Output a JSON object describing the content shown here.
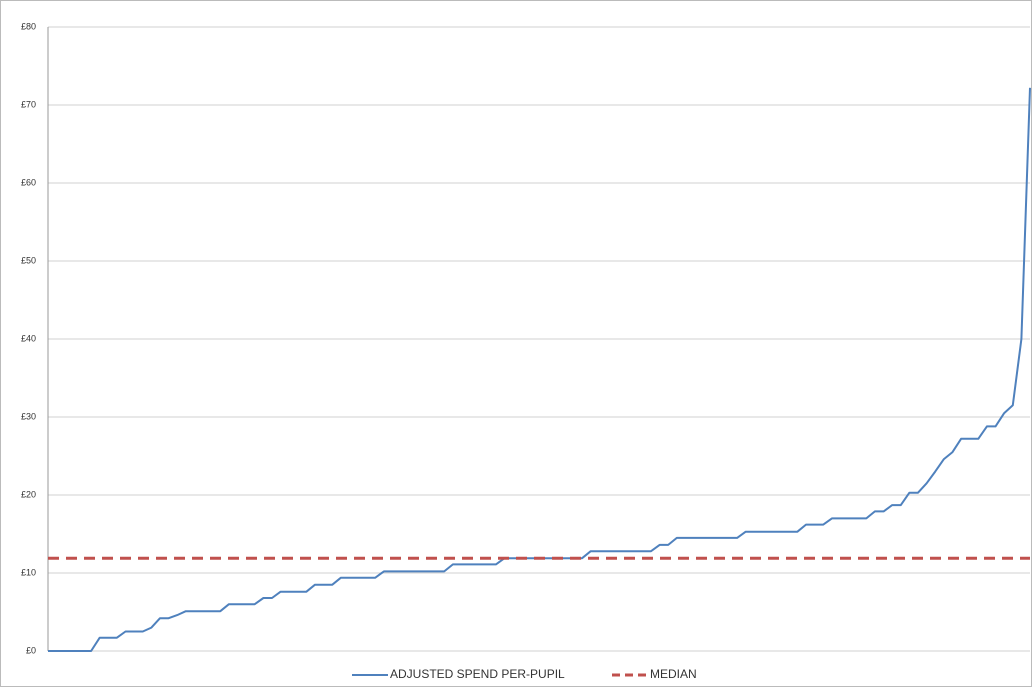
{
  "chart_data": {
    "type": "line",
    "ylim": [
      0,
      80
    ],
    "yticks": [
      {
        "value": 0,
        "label": "£0"
      },
      {
        "value": 10,
        "label": "£10"
      },
      {
        "value": 20,
        "label": "£20"
      },
      {
        "value": 30,
        "label": "£30"
      },
      {
        "value": 40,
        "label": "£40"
      },
      {
        "value": 50,
        "label": "£50"
      },
      {
        "value": 60,
        "label": "£60"
      },
      {
        "value": 70,
        "label": "£70"
      },
      {
        "value": 80,
        "label": "£80"
      }
    ],
    "grid": true,
    "legend": "bottom",
    "series": [
      {
        "name": "ADJUSTED SPEND PER-PUPIL",
        "color": "#4f81bd",
        "dashed": false,
        "values": [
          0,
          0,
          0,
          0,
          0,
          0,
          1.7,
          1.7,
          1.7,
          2.5,
          2.5,
          2.5,
          3.0,
          4.2,
          4.2,
          4.6,
          5.1,
          5.1,
          5.1,
          5.1,
          5.1,
          6.0,
          6.0,
          6.0,
          6.0,
          6.8,
          6.8,
          7.6,
          7.6,
          7.6,
          7.6,
          8.5,
          8.5,
          8.5,
          9.4,
          9.4,
          9.4,
          9.4,
          9.4,
          10.2,
          10.2,
          10.2,
          10.2,
          10.2,
          10.2,
          10.2,
          10.2,
          11.1,
          11.1,
          11.1,
          11.1,
          11.1,
          11.1,
          11.9,
          11.9,
          11.9,
          11.9,
          11.9,
          11.9,
          11.9,
          11.9,
          11.9,
          11.9,
          12.8,
          12.8,
          12.8,
          12.8,
          12.8,
          12.8,
          12.8,
          12.8,
          13.6,
          13.6,
          14.5,
          14.5,
          14.5,
          14.5,
          14.5,
          14.5,
          14.5,
          14.5,
          15.3,
          15.3,
          15.3,
          15.3,
          15.3,
          15.3,
          15.3,
          16.2,
          16.2,
          16.2,
          17.0,
          17.0,
          17.0,
          17.0,
          17.0,
          17.9,
          17.9,
          18.7,
          18.7,
          20.3,
          20.3,
          21.5,
          23.0,
          24.6,
          25.5,
          27.2,
          27.2,
          27.2,
          28.8,
          28.8,
          30.5,
          31.5,
          40,
          72.2
        ]
      },
      {
        "name": "MEDIAN",
        "color": "#c0504d",
        "dashed": true,
        "values": [
          11.9,
          11.9,
          11.9,
          11.9,
          11.9,
          11.9,
          11.9,
          11.9,
          11.9,
          11.9,
          11.9,
          11.9,
          11.9,
          11.9,
          11.9,
          11.9,
          11.9,
          11.9,
          11.9,
          11.9,
          11.9,
          11.9,
          11.9,
          11.9,
          11.9,
          11.9,
          11.9,
          11.9,
          11.9,
          11.9,
          11.9,
          11.9,
          11.9,
          11.9,
          11.9,
          11.9,
          11.9,
          11.9,
          11.9,
          11.9,
          11.9,
          11.9,
          11.9,
          11.9,
          11.9,
          11.9,
          11.9,
          11.9,
          11.9,
          11.9,
          11.9,
          11.9,
          11.9,
          11.9,
          11.9,
          11.9,
          11.9,
          11.9,
          11.9,
          11.9,
          11.9,
          11.9,
          11.9,
          11.9,
          11.9,
          11.9,
          11.9,
          11.9,
          11.9,
          11.9,
          11.9,
          11.9,
          11.9,
          11.9,
          11.9,
          11.9,
          11.9,
          11.9,
          11.9,
          11.9,
          11.9,
          11.9,
          11.9,
          11.9,
          11.9,
          11.9,
          11.9,
          11.9,
          11.9,
          11.9,
          11.9,
          11.9,
          11.9,
          11.9,
          11.9,
          11.9,
          11.9,
          11.9,
          11.9,
          11.9,
          11.9,
          11.9,
          11.9,
          11.9,
          11.9,
          11.9,
          11.9,
          11.9,
          11.9,
          11.9,
          11.9,
          11.9,
          11.9,
          11.9,
          11.9
        ]
      }
    ]
  }
}
